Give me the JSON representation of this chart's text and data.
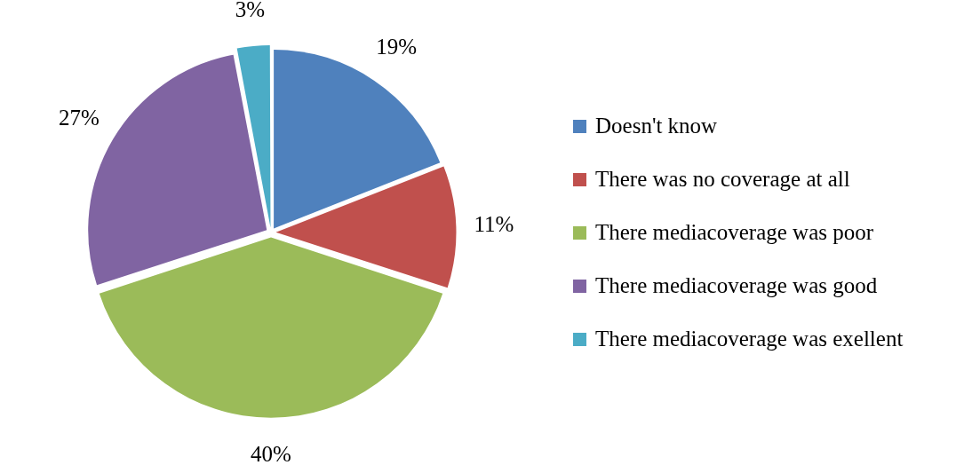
{
  "chart_data": {
    "type": "pie",
    "categories": [
      "Doesn't know",
      "There was no coverage at all",
      "There mediacoverage was poor",
      "There mediacoverage was good",
      "There mediacoverage was exellent"
    ],
    "values": [
      19,
      11,
      40,
      27,
      3
    ],
    "colors": [
      "#4f81bd",
      "#c0504d",
      "#9bbb59",
      "#8064a2",
      "#4bacc6"
    ],
    "value_labels": [
      "19%",
      "11%",
      "40%",
      "27%",
      "3%"
    ],
    "legend": "right"
  }
}
